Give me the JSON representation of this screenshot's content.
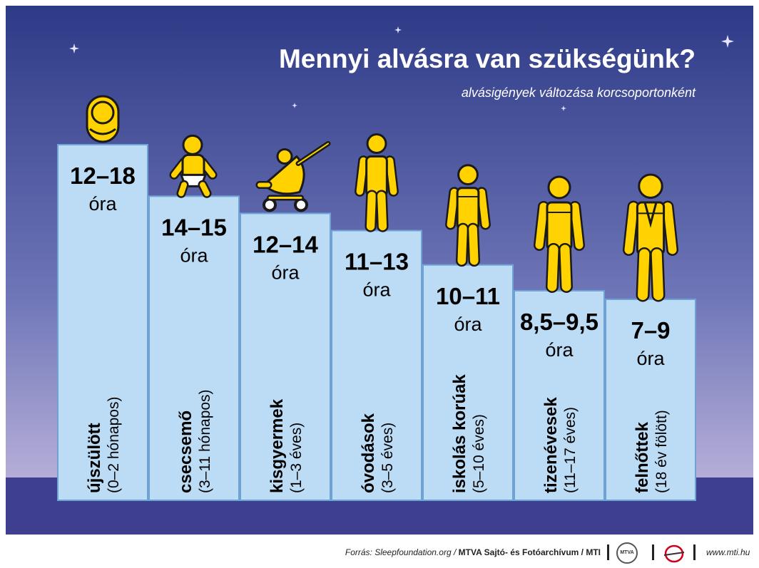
{
  "colors": {
    "sky_top": "#2d3a86",
    "sky_bottom": "#c9bde0",
    "ground": "#3f3f8f",
    "bar_fill": "#bcdcf6",
    "bar_stroke": "#6fa3d6",
    "figure": "#ffd200",
    "text": "#000000"
  },
  "footer": {
    "source_prefix": "Forrás: Sleepfoundation.org /",
    "source_bold": "MTVA Sajtó- és Fotóarchívum / MTI",
    "logo1_text": "MTVA",
    "website": "www.mti.hu"
  },
  "chart_data": {
    "type": "bar",
    "title": "Mennyi alvásra van szükségünk?",
    "subtitle": "alvásigények változása korcsoportonként",
    "unit": "óra",
    "categories": [
      {
        "name": "újszülött",
        "age": "(0–2 hónapos)",
        "range_label": "12–18",
        "icon": "swaddled-baby-icon"
      },
      {
        "name": "csecsemő",
        "age": "(3–11 hónapos)",
        "range_label": "14–15",
        "icon": "sitting-baby-icon"
      },
      {
        "name": "kisgyermek",
        "age": "(1–3 éves)",
        "range_label": "12–14",
        "icon": "stroller-icon"
      },
      {
        "name": "óvodások",
        "age": "(3–5 éves)",
        "range_label": "11–13",
        "icon": "preschooler-icon"
      },
      {
        "name": "iskolás korúak",
        "age": "(5–10 éves)",
        "range_label": "10–11",
        "icon": "schoolchild-icon"
      },
      {
        "name": "tizenévesek",
        "age": "(11–17 éves)",
        "range_label": "8,5–9,5",
        "icon": "teenager-icon"
      },
      {
        "name": "felnőttek",
        "age": "(18 év fölött)",
        "range_label": "7–9",
        "icon": "adult-icon"
      }
    ],
    "values": [
      [
        12,
        18
      ],
      [
        14,
        15
      ],
      [
        12,
        14
      ],
      [
        11,
        13
      ],
      [
        10,
        11
      ],
      [
        8.5,
        9.5
      ],
      [
        7,
        9
      ]
    ]
  }
}
